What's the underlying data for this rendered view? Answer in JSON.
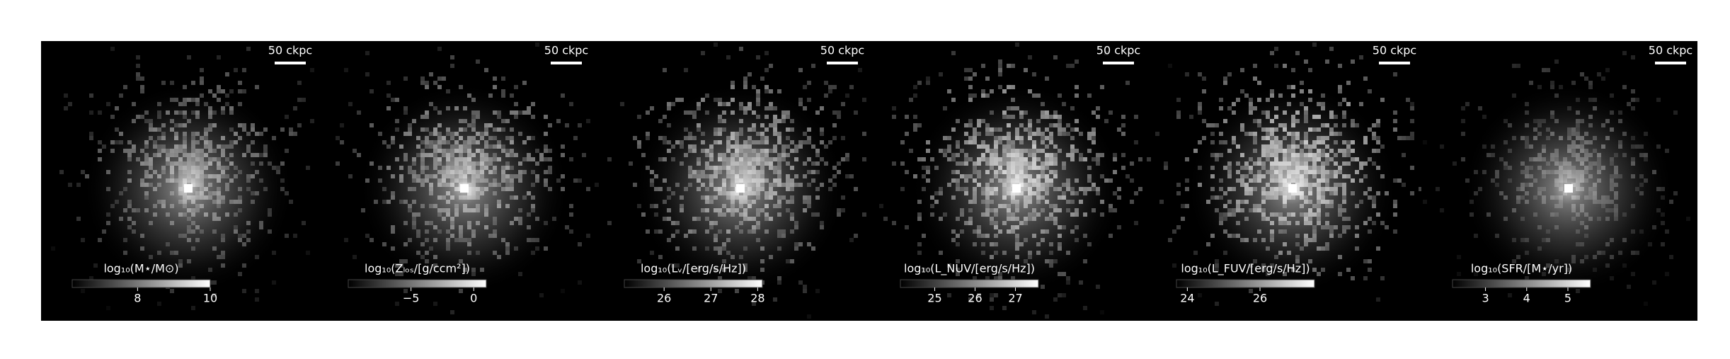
{
  "chart_data": [
    {
      "type": "image",
      "scale_label": "50 ckpc",
      "colorbar_label": "log₁₀(M⋆/M⊙)",
      "clim": [
        6.2,
        10
      ],
      "cticks": [
        8,
        10
      ]
    },
    {
      "type": "image",
      "scale_label": "50 ckpc",
      "colorbar_label": "log₁₀(Zₗₒₛ/[g/ccm²])",
      "clim": [
        -10,
        1
      ],
      "cticks": [
        {
          "value": -5,
          "label": "−5"
        },
        0
      ]
    },
    {
      "type": "image",
      "scale_label": "50 ckpc",
      "colorbar_label": "log₁₀(Lᵥ/[erg/s/Hz])",
      "clim": [
        25.15,
        28.1
      ],
      "cticks": [
        26,
        27,
        28
      ]
    },
    {
      "type": "image",
      "scale_label": "50 ckpc",
      "colorbar_label": "log₁₀(L_NUV/[erg/s/Hz])",
      "clim": [
        24.15,
        27.57
      ],
      "cticks": [
        25,
        26,
        27
      ]
    },
    {
      "type": "image",
      "scale_label": "50 ckpc",
      "colorbar_label": "log₁₀(L_FUV/[erg/s/Hz])",
      "clim": [
        23.7,
        27.5
      ],
      "cticks": [
        24,
        26
      ]
    },
    {
      "type": "image",
      "scale_label": "50 ckpc",
      "colorbar_label": "log₁₀(SFR/[M⋆/yr])",
      "clim": [
        2.2,
        5.55
      ],
      "cticks": [
        3,
        4,
        5
      ]
    }
  ]
}
